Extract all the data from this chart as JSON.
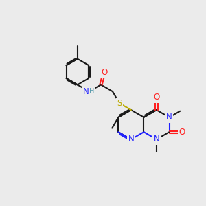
{
  "bg": "#ebebeb",
  "C": "#1a1a1a",
  "N": "#2020ff",
  "O": "#ff2020",
  "S": "#bbaa00",
  "H": "#5599aa",
  "lw": 1.5,
  "fs": 8.5,
  "fs_s": 7.0,
  "bl": 0.72,
  "figsize": [
    3.0,
    3.0
  ],
  "dpi": 100
}
